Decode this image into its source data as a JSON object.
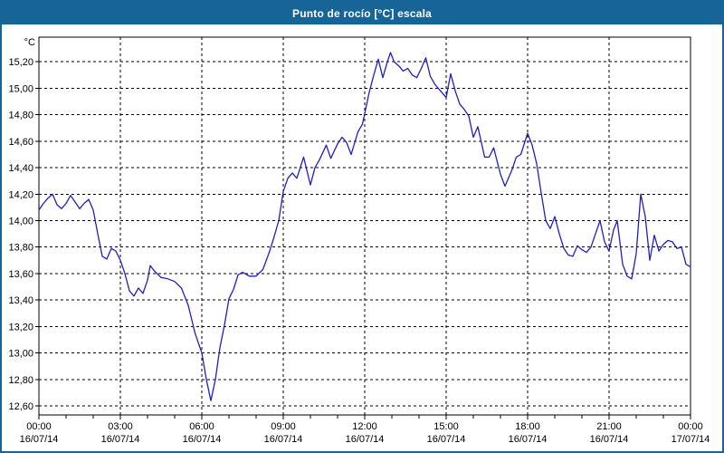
{
  "window": {
    "title": "Punto de rocío [°C] escala"
  },
  "colors": {
    "titlebar_bg": "#176499",
    "titlebar_fg": "#ffffff",
    "window_border": "#176499",
    "chart_bg": "#ffffff",
    "line": "#1f1fc4",
    "grid": "#000000",
    "frame": "#000000",
    "text": "#000000"
  },
  "chart_data": {
    "type": "line",
    "title": "Punto de rocío [°C] escala",
    "ylabel": "°C",
    "xlabel": "",
    "grid": "dashed",
    "legend": "none",
    "ylim": [
      12.53,
      15.38
    ],
    "x_start": "16/07/14 00:00",
    "x_end": "17/07/14 00:00",
    "minor_tick_every_hours": 1,
    "y_ticks": [
      {
        "label": "12,60",
        "value": 12.6
      },
      {
        "label": "12,80",
        "value": 12.8
      },
      {
        "label": "13,00",
        "value": 13.0
      },
      {
        "label": "13,20",
        "value": 13.2
      },
      {
        "label": "13,40",
        "value": 13.4
      },
      {
        "label": "13,60",
        "value": 13.6
      },
      {
        "label": "13,80",
        "value": 13.8
      },
      {
        "label": "14,00",
        "value": 14.0
      },
      {
        "label": "14,20",
        "value": 14.2
      },
      {
        "label": "14,40",
        "value": 14.4
      },
      {
        "label": "14,60",
        "value": 14.6
      },
      {
        "label": "14,80",
        "value": 14.8
      },
      {
        "label": "15,00",
        "value": 15.0
      },
      {
        "label": "15,20",
        "value": 15.2
      }
    ],
    "x_ticks": [
      {
        "hour": 0,
        "time": "00:00",
        "date": "16/07/14"
      },
      {
        "hour": 3,
        "time": "03:00",
        "date": "16/07/14"
      },
      {
        "hour": 6,
        "time": "06:00",
        "date": "16/07/14"
      },
      {
        "hour": 9,
        "time": "09:00",
        "date": "16/07/14"
      },
      {
        "hour": 12,
        "time": "12:00",
        "date": "16/07/14"
      },
      {
        "hour": 15,
        "time": "15:00",
        "date": "16/07/14"
      },
      {
        "hour": 18,
        "time": "18:00",
        "date": "16/07/14"
      },
      {
        "hour": 21,
        "time": "21:00",
        "date": "16/07/14"
      },
      {
        "hour": 24,
        "time": "00:00",
        "date": "17/07/14"
      }
    ],
    "series": [
      {
        "name": "Punto de rocío [°C]",
        "points": [
          [
            "00:00",
            14.08
          ],
          [
            "00:10",
            14.13
          ],
          [
            "00:20",
            14.17
          ],
          [
            "00:30",
            14.2
          ],
          [
            "00:40",
            14.12
          ],
          [
            "00:50",
            14.09
          ],
          [
            "01:00",
            14.13
          ],
          [
            "01:10",
            14.19
          ],
          [
            "01:20",
            14.14
          ],
          [
            "01:30",
            14.09
          ],
          [
            "01:40",
            14.13
          ],
          [
            "01:50",
            14.16
          ],
          [
            "02:00",
            14.08
          ],
          [
            "02:10",
            13.9
          ],
          [
            "02:20",
            13.73
          ],
          [
            "02:30",
            13.71
          ],
          [
            "02:40",
            13.79
          ],
          [
            "02:50",
            13.77
          ],
          [
            "03:00",
            13.7
          ],
          [
            "03:10",
            13.6
          ],
          [
            "03:20",
            13.47
          ],
          [
            "03:30",
            13.43
          ],
          [
            "03:40",
            13.49
          ],
          [
            "03:50",
            13.45
          ],
          [
            "04:00",
            13.55
          ],
          [
            "04:06",
            13.66
          ],
          [
            "04:15",
            13.62
          ],
          [
            "04:30",
            13.57
          ],
          [
            "04:45",
            13.56
          ],
          [
            "05:00",
            13.54
          ],
          [
            "05:15",
            13.49
          ],
          [
            "05:30",
            13.36
          ],
          [
            "05:45",
            13.15
          ],
          [
            "06:00",
            13.0
          ],
          [
            "06:10",
            12.8
          ],
          [
            "06:20",
            12.64
          ],
          [
            "06:30",
            12.8
          ],
          [
            "06:40",
            13.04
          ],
          [
            "06:50",
            13.21
          ],
          [
            "07:00",
            13.41
          ],
          [
            "07:10",
            13.48
          ],
          [
            "07:20",
            13.59
          ],
          [
            "07:30",
            13.61
          ],
          [
            "07:45",
            13.58
          ],
          [
            "08:00",
            13.58
          ],
          [
            "08:15",
            13.63
          ],
          [
            "08:30",
            13.77
          ],
          [
            "08:40",
            13.88
          ],
          [
            "08:50",
            14.0
          ],
          [
            "09:00",
            14.22
          ],
          [
            "09:10",
            14.32
          ],
          [
            "09:20",
            14.36
          ],
          [
            "09:30",
            14.32
          ],
          [
            "09:45",
            14.48
          ],
          [
            "10:00",
            14.27
          ],
          [
            "10:10",
            14.4
          ],
          [
            "10:20",
            14.46
          ],
          [
            "10:35",
            14.57
          ],
          [
            "10:45",
            14.47
          ],
          [
            "11:00",
            14.58
          ],
          [
            "11:10",
            14.63
          ],
          [
            "11:20",
            14.59
          ],
          [
            "11:30",
            14.5
          ],
          [
            "11:45",
            14.67
          ],
          [
            "11:55",
            14.73
          ],
          [
            "12:00",
            14.81
          ],
          [
            "12:10",
            14.97
          ],
          [
            "12:20",
            15.1
          ],
          [
            "12:30",
            15.22
          ],
          [
            "12:40",
            15.08
          ],
          [
            "12:50",
            15.2
          ],
          [
            "12:57",
            15.27
          ],
          [
            "13:05",
            15.2
          ],
          [
            "13:15",
            15.17
          ],
          [
            "13:25",
            15.13
          ],
          [
            "13:35",
            15.15
          ],
          [
            "13:45",
            15.1
          ],
          [
            "13:55",
            15.08
          ],
          [
            "14:05",
            15.15
          ],
          [
            "14:15",
            15.23
          ],
          [
            "14:25",
            15.09
          ],
          [
            "14:35",
            15.03
          ],
          [
            "14:45",
            14.99
          ],
          [
            "15:00",
            14.93
          ],
          [
            "15:10",
            15.11
          ],
          [
            "15:20",
            14.98
          ],
          [
            "15:30",
            14.88
          ],
          [
            "15:40",
            14.84
          ],
          [
            "15:50",
            14.79
          ],
          [
            "16:00",
            14.63
          ],
          [
            "16:10",
            14.71
          ],
          [
            "16:25",
            14.48
          ],
          [
            "16:35",
            14.48
          ],
          [
            "16:45",
            14.55
          ],
          [
            "17:00",
            14.35
          ],
          [
            "17:10",
            14.26
          ],
          [
            "17:25",
            14.38
          ],
          [
            "17:35",
            14.48
          ],
          [
            "17:45",
            14.5
          ],
          [
            "18:00",
            14.66
          ],
          [
            "18:10",
            14.57
          ],
          [
            "18:20",
            14.43
          ],
          [
            "18:30",
            14.21
          ],
          [
            "18:40",
            14.0
          ],
          [
            "18:50",
            13.94
          ],
          [
            "19:00",
            14.03
          ],
          [
            "19:10",
            13.9
          ],
          [
            "19:20",
            13.79
          ],
          [
            "19:30",
            13.74
          ],
          [
            "19:40",
            13.73
          ],
          [
            "19:50",
            13.81
          ],
          [
            "20:00",
            13.78
          ],
          [
            "20:10",
            13.76
          ],
          [
            "20:20",
            13.8
          ],
          [
            "20:30",
            13.9
          ],
          [
            "20:40",
            14.0
          ],
          [
            "20:50",
            13.84
          ],
          [
            "21:00",
            13.77
          ],
          [
            "21:10",
            13.93
          ],
          [
            "21:18",
            14.0
          ],
          [
            "21:30",
            13.67
          ],
          [
            "21:40",
            13.58
          ],
          [
            "21:50",
            13.56
          ],
          [
            "22:00",
            13.75
          ],
          [
            "22:10",
            14.2
          ],
          [
            "22:20",
            14.03
          ],
          [
            "22:30",
            13.7
          ],
          [
            "22:40",
            13.89
          ],
          [
            "22:50",
            13.77
          ],
          [
            "23:00",
            13.82
          ],
          [
            "23:10",
            13.85
          ],
          [
            "23:20",
            13.84
          ],
          [
            "23:30",
            13.79
          ],
          [
            "23:40",
            13.8
          ],
          [
            "23:50",
            13.67
          ],
          [
            "24:00",
            13.65
          ]
        ]
      }
    ]
  }
}
